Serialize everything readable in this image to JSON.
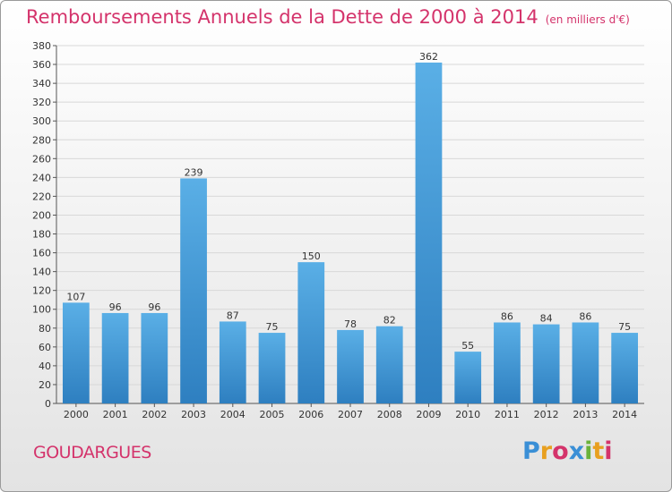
{
  "header": {
    "title": "Remboursements Annuels de la Dette de 2000 à 2014",
    "unit": "(en milliers d'€)"
  },
  "footer": {
    "town": "GOUDARGUES",
    "logo_text": "Proxiti"
  },
  "colors": {
    "title": "#d4336b",
    "bar_top": "#5aafe6",
    "bar_bottom": "#2e7fc0",
    "grid": "#d8d8d8"
  },
  "chart_data": {
    "type": "bar",
    "title": "Remboursements Annuels de la Dette de 2000 à 2014",
    "xlabel": "",
    "ylabel": "en milliers d'€",
    "ylim": [
      0,
      380
    ],
    "ytick_step": 20,
    "grid": true,
    "categories": [
      "2000",
      "2001",
      "2002",
      "2003",
      "2004",
      "2005",
      "2006",
      "2007",
      "2008",
      "2009",
      "2010",
      "2011",
      "2012",
      "2013",
      "2014"
    ],
    "values": [
      107,
      96,
      96,
      239,
      87,
      75,
      150,
      78,
      82,
      362,
      55,
      86,
      84,
      86,
      75
    ]
  }
}
